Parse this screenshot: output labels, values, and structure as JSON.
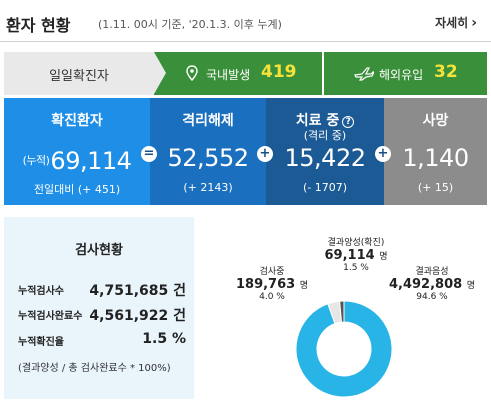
{
  "header": {
    "title": "환자 현황",
    "subtitle": "(1.11. 00시 기준, '20.1.3. 이후 누계)",
    "detail_link": "자세히"
  },
  "confirmed_bar": {
    "label": "일일확진자",
    "domestic": {
      "label": "국내발생",
      "value": "419",
      "icon": "location-pin-icon"
    },
    "overseas": {
      "label": "해외유입",
      "value": "32",
      "icon": "airplane-icon"
    }
  },
  "stats": {
    "confirmed": {
      "label": "확진환자",
      "prefix": "(누적)",
      "value": "69,114",
      "change": "전일대비 (+ 451)"
    },
    "released": {
      "label": "격리해제",
      "value": "52,552",
      "change": "(+ 2143)"
    },
    "treating": {
      "label": "치료 중",
      "sub": "(격리 중)",
      "value": "15,422",
      "change": "(- 1707)"
    },
    "deaths": {
      "label": "사망",
      "value": "1,140",
      "change": "(+ 15)"
    }
  },
  "operators": {
    "eq": "=",
    "plus": "+"
  },
  "test_status": {
    "title": "검사현황",
    "rows": [
      {
        "key": "누적검사수",
        "value": "4,751,685 건"
      },
      {
        "key": "누적검사완료수",
        "value": "4,561,922 건"
      },
      {
        "key": "누적확진율",
        "value": "1.5 %"
      }
    ],
    "note": "(결과양성 / 총 검사완료수 * 100%)"
  },
  "chart_data": {
    "type": "pie",
    "donut": true,
    "slices": [
      {
        "name": "결과음성",
        "value": 4492808,
        "percent": 94.6,
        "color": "#28b4e6"
      },
      {
        "name": "검사중",
        "value": 189763,
        "percent": 4.0,
        "color": "#e6e6e6"
      },
      {
        "name": "결과양성(확진)",
        "value": 69114,
        "percent": 1.5,
        "color": "#555555"
      }
    ],
    "labels": {
      "positive": {
        "name": "결과양성(확진)",
        "value": "69,114",
        "unit": "명",
        "pct": "1.5 %"
      },
      "testing": {
        "name": "검사중",
        "value": "189,763",
        "unit": "명",
        "pct": "4.0 %"
      },
      "negative": {
        "name": "결과음성",
        "value": "4,492,808",
        "unit": "명",
        "pct": "94.6 %"
      }
    }
  }
}
